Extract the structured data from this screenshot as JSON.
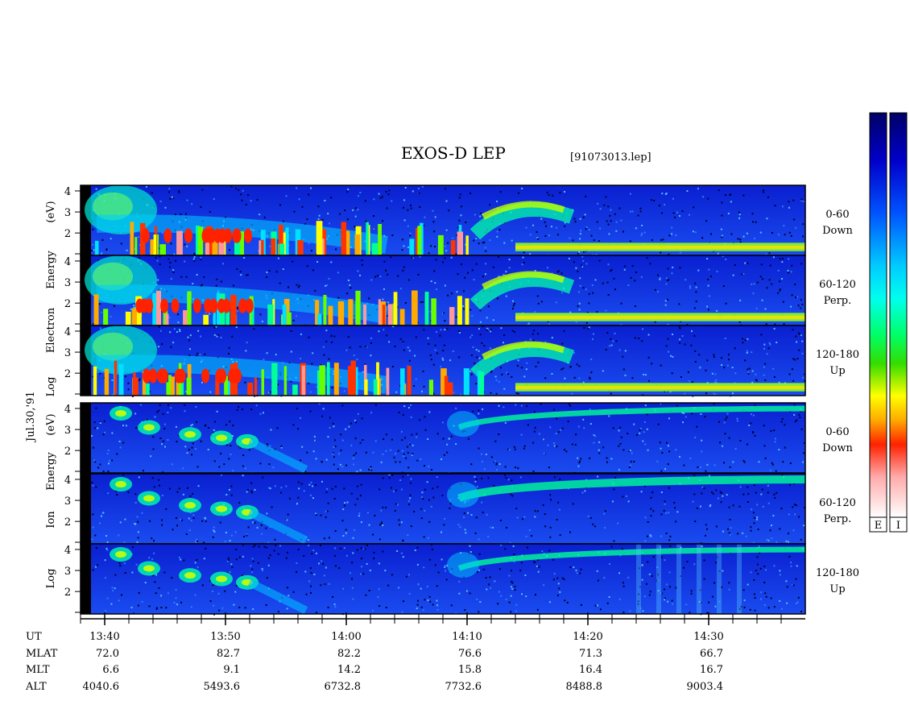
{
  "title": "EXOS-D LEP",
  "file_label": "[91073013.lep]",
  "date_label": "Jul.30,'91",
  "chart_data": {
    "type": "heatmap",
    "instrument": "EXOS-D LEP",
    "file": "[91073013.lep]",
    "date": "Jul.30,'91",
    "groups": [
      {
        "name": "electron",
        "ylabel": [
          "Log",
          "Electron",
          "Energy",
          "(eV)"
        ],
        "panels": [
          {
            "id": "e-down",
            "angle": "0-60",
            "dir": "Down"
          },
          {
            "id": "e-perp",
            "angle": "60-120",
            "dir": "Perp."
          },
          {
            "id": "e-up",
            "angle": "120-180",
            "dir": "Up"
          }
        ]
      },
      {
        "name": "ion",
        "ylabel": [
          "Log",
          "Ion",
          "Energy",
          "(eV)"
        ],
        "panels": [
          {
            "id": "i-down",
            "angle": "0-60",
            "dir": "Down"
          },
          {
            "id": "i-perp",
            "angle": "60-120",
            "dir": "Perp."
          },
          {
            "id": "i-up",
            "angle": "120-180",
            "dir": "Up"
          }
        ]
      }
    ],
    "y_ticks": [
      "4",
      "3",
      "2"
    ],
    "ylim": [
      1,
      4
    ],
    "x_ticks": [
      "13:40",
      "13:50",
      "14:00",
      "14:10",
      "14:20",
      "14:30"
    ],
    "ephemeris": {
      "UT": [
        "13:40",
        "13:50",
        "14:00",
        "14:10",
        "14:20",
        "14:30"
      ],
      "MLAT": [
        "72.0",
        "82.7",
        "82.2",
        "76.6",
        "71.3",
        "66.7"
      ],
      "MLT": [
        "6.6",
        "9.1",
        "14.2",
        "15.8",
        "16.4",
        "16.7"
      ],
      "ALT": [
        "4040.6",
        "5493.6",
        "6732.8",
        "7732.6",
        "8488.8",
        "9003.4"
      ]
    },
    "ephemeris_labels": [
      "UT",
      "MLAT",
      "MLT",
      "ALT"
    ],
    "colorbars": [
      {
        "label": "E",
        "colors": [
          "#000066",
          "#0000cc",
          "#0044ff",
          "#00aaff",
          "#00ffff",
          "#00ff88",
          "#22dd00",
          "#ffff00",
          "#ffaa00",
          "#ff0000",
          "#ffaaaa",
          "#ffffff"
        ]
      },
      {
        "label": "I",
        "colors": [
          "#000066",
          "#0000cc",
          "#0044ff",
          "#00aaff",
          "#00ffff",
          "#00ff88",
          "#22dd00",
          "#ffff00",
          "#ffaa00",
          "#ff0000",
          "#ffaaaa",
          "#ffffff"
        ]
      }
    ]
  }
}
